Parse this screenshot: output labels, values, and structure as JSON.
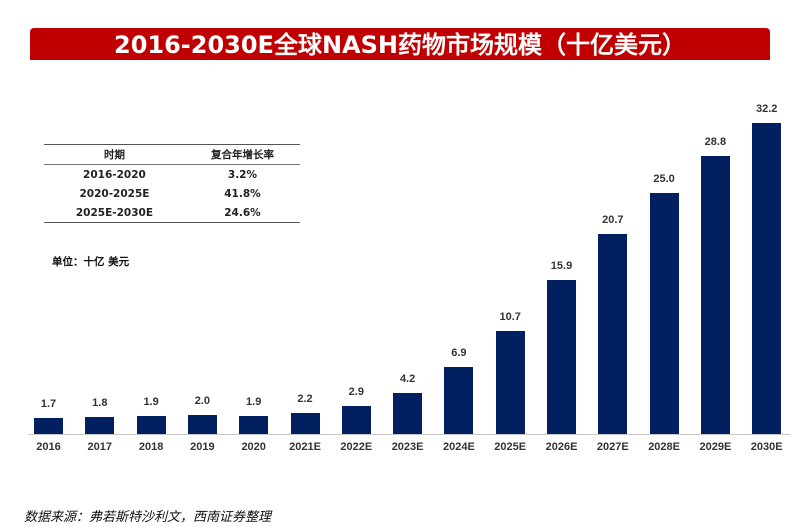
{
  "title": "2016-2030E全球NASH药物市场规模（十亿美元）",
  "table": {
    "headers": [
      "时期",
      "复合年增长率"
    ],
    "rows": [
      [
        "2016-2020",
        "3.2%"
      ],
      [
        "2020-2025E",
        "41.8%"
      ],
      [
        "2025E-2030E",
        "24.6%"
      ]
    ]
  },
  "unit_label": "单位：十亿 美元",
  "source": "数据来源：弗若斯特沙利文，西南证券整理",
  "colors": {
    "title_bg": "#c00000",
    "bar": "#002060"
  },
  "chart_data": {
    "type": "bar",
    "title": "2016-2030E全球NASH药物市场规模（十亿美元）",
    "xlabel": "",
    "ylabel": "十亿美元",
    "categories": [
      "2016",
      "2017",
      "2018",
      "2019",
      "2020",
      "2021E",
      "2022E",
      "2023E",
      "2024E",
      "2025E",
      "2026E",
      "2027E",
      "2028E",
      "2029E",
      "2030E"
    ],
    "values": [
      1.7,
      1.8,
      1.9,
      2.0,
      1.9,
      2.2,
      2.9,
      4.2,
      6.9,
      10.7,
      15.9,
      20.7,
      25.0,
      28.8,
      32.2
    ],
    "labels": [
      "1.7",
      "1.8",
      "1.9",
      "2.0",
      "1.9",
      "2.2",
      "2.9",
      "4.2",
      "6.9",
      "10.7",
      "15.9",
      "20.7",
      "25.0",
      "28.8",
      "32.2"
    ],
    "ylim": [
      0,
      32.2
    ],
    "grid": false,
    "legend": "none"
  }
}
